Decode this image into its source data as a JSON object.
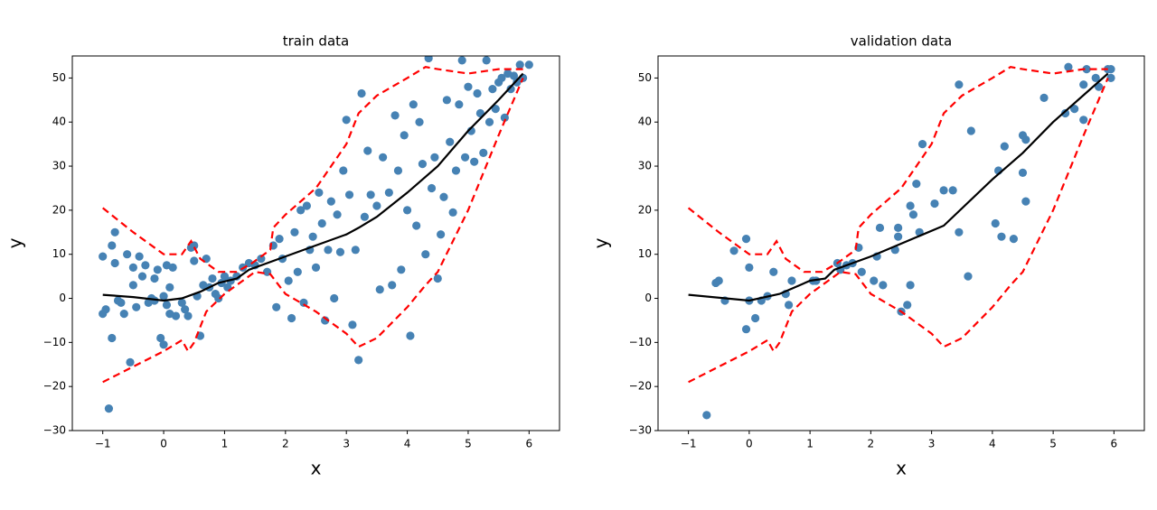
{
  "chart_data": [
    {
      "type": "scatter",
      "title": "train data",
      "xlabel": "x",
      "ylabel": "y",
      "xlim": [
        -1.5,
        6.5
      ],
      "ylim": [
        -30,
        55
      ],
      "xticks": [
        {
          "value": -1,
          "label": "−1"
        },
        0,
        1,
        2,
        3,
        4,
        5,
        6
      ],
      "yticks": [
        {
          "value": -30,
          "label": "−30"
        },
        {
          "value": -20,
          "label": "−20"
        },
        {
          "value": -10,
          "label": "−10"
        },
        0,
        10,
        20,
        30,
        40,
        50
      ],
      "points": {
        "color": "#4682b4",
        "x": [
          -1,
          -1,
          -0.95,
          -0.9,
          -0.85,
          -0.85,
          -0.8,
          -0.8,
          -0.75,
          -0.7,
          -0.65,
          -0.6,
          -0.55,
          -0.5,
          -0.5,
          -0.45,
          -0.4,
          -0.35,
          -0.3,
          -0.25,
          -0.2,
          -0.15,
          -0.15,
          -0.1,
          -0.05,
          0,
          0,
          0.05,
          0.05,
          0.1,
          0.1,
          0.15,
          0.2,
          0.3,
          0.35,
          0.4,
          0.45,
          0.5,
          0.5,
          0.55,
          0.6,
          0.65,
          0.7,
          0.75,
          0.8,
          0.85,
          0.9,
          0.95,
          1,
          1.05,
          1.1,
          1.2,
          1.3,
          1.4,
          1.5,
          1.6,
          1.7,
          1.8,
          1.85,
          1.9,
          1.95,
          2.05,
          2.1,
          2.15,
          2.2,
          2.25,
          2.3,
          2.35,
          2.4,
          2.45,
          2.5,
          2.55,
          2.6,
          2.65,
          2.7,
          2.75,
          2.8,
          2.85,
          2.9,
          2.95,
          3,
          3.05,
          3.1,
          3.15,
          3.2,
          3.25,
          3.3,
          3.35,
          3.4,
          3.5,
          3.55,
          3.6,
          3.7,
          3.75,
          3.8,
          3.85,
          3.9,
          3.95,
          4,
          4.05,
          4.1,
          4.15,
          4.2,
          4.25,
          4.3,
          4.35,
          4.4,
          4.45,
          4.5,
          4.55,
          4.6,
          4.65,
          4.7,
          4.75,
          4.8,
          4.85,
          4.9,
          4.95,
          5,
          5.05,
          5.1,
          5.15,
          5.2,
          5.25,
          5.3,
          5.35,
          5.4,
          5.45,
          5.5,
          5.55,
          5.6,
          5.65,
          5.7,
          5.75,
          5.8,
          5.85,
          5.9,
          6
        ],
        "y": [
          9.5,
          -3.5,
          -2.5,
          -25,
          12,
          -9,
          15,
          8,
          -0.5,
          -1,
          -3.5,
          10,
          -14.5,
          7,
          3,
          -2,
          9.5,
          5,
          7.5,
          -1,
          0,
          -0.5,
          4.5,
          6.5,
          -9,
          -10.5,
          0.5,
          7.5,
          -1.5,
          -3.5,
          2.5,
          7,
          -4,
          -1,
          -2.5,
          -4,
          11.5,
          12,
          8.5,
          0.5,
          -8.5,
          3,
          9,
          2.5,
          4.5,
          1,
          0,
          3.5,
          5,
          2.5,
          4,
          5,
          7,
          8,
          7.5,
          9,
          6,
          12,
          -2,
          13.5,
          9,
          4,
          -4.5,
          15,
          6,
          20,
          -1,
          21,
          11,
          14,
          7,
          24,
          17,
          -5,
          11,
          22,
          0,
          19,
          10.5,
          29,
          40.5,
          23.5,
          -6,
          11,
          -14,
          46.5,
          18.5,
          33.5,
          23.5,
          21,
          2,
          32,
          24,
          3,
          41.5,
          29,
          6.5,
          37,
          20,
          -8.5,
          44,
          16.5,
          40,
          30.5,
          10,
          54.5,
          25,
          32,
          4.5,
          14.5,
          23,
          45,
          35.5,
          19.5,
          29,
          44,
          54,
          32,
          48,
          38,
          31,
          46.5,
          42,
          33,
          54,
          40,
          47.5,
          43,
          49,
          50,
          41,
          51,
          47.5,
          50.5,
          49,
          53,
          50,
          53
        ]
      },
      "line": {
        "color": "#000000",
        "x": [
          -1,
          -0.5,
          0,
          0.3,
          0.6,
          0.9,
          1.2,
          1.4,
          2,
          2.5,
          3,
          3.2,
          3.5,
          4,
          4.5,
          5,
          5.5,
          5.9
        ],
        "y": [
          0.8,
          0.3,
          -0.5,
          0,
          1.5,
          3.5,
          4.5,
          6.5,
          9.5,
          12,
          14.5,
          16,
          18.5,
          24,
          30,
          38,
          45,
          51
        ]
      },
      "upper": {
        "color": "#ff0000",
        "x": [
          -1,
          -0.5,
          0,
          0.3,
          0.45,
          0.6,
          0.9,
          1.2,
          1.45,
          1.75,
          1.8,
          2,
          2.5,
          3,
          3.2,
          3.5,
          4,
          4.3,
          4.5,
          5,
          5.5,
          5.9
        ],
        "y": [
          20.5,
          15,
          10,
          10,
          13,
          9,
          6,
          6,
          8,
          11,
          16,
          19,
          25,
          35,
          42,
          46,
          50,
          52.5,
          52,
          51,
          52,
          52
        ]
      },
      "lower": {
        "color": "#ff0000",
        "x": [
          -1,
          -0.5,
          0,
          0.3,
          0.4,
          0.5,
          0.7,
          1,
          1.3,
          1.5,
          1.75,
          2,
          2.5,
          3,
          3.2,
          3.5,
          4,
          4.3,
          4.5,
          5,
          5.5,
          5.9
        ],
        "y": [
          -19,
          -15.5,
          -12,
          -9.5,
          -12,
          -10,
          -3,
          1,
          4,
          6,
          5.5,
          1,
          -3,
          -8,
          -11,
          -9,
          -2,
          3,
          6,
          20,
          37,
          50
        ]
      }
    },
    {
      "type": "scatter",
      "title": "validation data",
      "xlabel": "x",
      "ylabel": "y",
      "xlim": [
        -1.5,
        6.5
      ],
      "ylim": [
        -30,
        55
      ],
      "xticks": [
        {
          "value": -1,
          "label": "−1"
        },
        0,
        1,
        2,
        3,
        4,
        5,
        6
      ],
      "yticks": [
        {
          "value": -30,
          "label": "−30"
        },
        {
          "value": -20,
          "label": "−20"
        },
        {
          "value": -10,
          "label": "−10"
        },
        0,
        10,
        20,
        30,
        40,
        50
      ],
      "points": {
        "color": "#4682b4",
        "x": [
          -0.55,
          -0.5,
          -0.4,
          -0.25,
          -0.05,
          -0.05,
          0,
          0,
          0.1,
          0.2,
          0.3,
          0.4,
          0.6,
          0.65,
          0.7,
          1.05,
          1.1,
          1.45,
          1.5,
          1.6,
          1.7,
          1.8,
          1.85,
          2.05,
          2.1,
          2.15,
          2.2,
          2.4,
          2.45,
          2.45,
          2.5,
          2.6,
          2.65,
          2.65,
          2.7,
          2.75,
          2.8,
          2.85,
          3.05,
          3.2,
          3.35,
          3.45,
          3.45,
          3.6,
          3.65,
          4.05,
          4.1,
          4.15,
          4.2,
          4.35,
          4.5,
          4.5,
          4.55,
          4.55,
          4.85,
          5.2,
          5.25,
          5.35,
          5.5,
          5.5,
          5.55,
          5.7,
          5.75,
          5.9,
          5.95,
          5.95,
          -0.7
        ],
        "y": [
          3.5,
          4,
          -0.5,
          10.8,
          13.5,
          -7,
          7,
          -0.5,
          -4.5,
          -0.5,
          0.5,
          6,
          1,
          -1.5,
          4,
          4,
          4,
          8,
          6.5,
          7.5,
          8,
          11.5,
          6,
          4,
          9.5,
          16,
          3,
          11,
          14,
          16,
          -3,
          -1.5,
          3,
          21,
          19,
          26,
          15,
          35,
          21.5,
          24.5,
          24.5,
          48.5,
          15,
          5,
          38,
          17,
          29,
          14,
          34.5,
          13.5,
          28.5,
          37,
          36,
          22,
          45.5,
          42,
          52.5,
          43,
          48.5,
          40.5,
          52,
          50,
          48,
          52,
          50,
          52,
          -26.5
        ]
      },
      "line": {
        "color": "#000000",
        "x": [
          -1,
          0,
          0.5,
          1,
          1.25,
          1.4,
          2,
          3.2,
          4,
          4.5,
          5,
          5.9
        ],
        "y": [
          0.8,
          -0.5,
          1,
          4,
          4.5,
          6.5,
          9.5,
          16.5,
          27,
          33,
          40,
          51
        ]
      },
      "upper": {
        "color": "#ff0000",
        "x": [
          -1,
          -0.5,
          0,
          0.3,
          0.45,
          0.6,
          0.9,
          1.2,
          1.45,
          1.75,
          1.8,
          2,
          2.5,
          3,
          3.2,
          3.5,
          4,
          4.3,
          4.5,
          5,
          5.5,
          5.9
        ],
        "y": [
          20.5,
          15,
          10,
          10,
          13,
          9,
          6,
          6,
          8,
          11,
          16,
          19,
          25,
          35,
          42,
          46,
          50,
          52.5,
          52,
          51,
          52,
          52
        ]
      },
      "lower": {
        "color": "#ff0000",
        "x": [
          -1,
          -0.5,
          0,
          0.3,
          0.4,
          0.5,
          0.7,
          1,
          1.3,
          1.5,
          1.75,
          2,
          2.5,
          3,
          3.2,
          3.5,
          4,
          4.3,
          4.5,
          5,
          5.5,
          5.9
        ],
        "y": [
          -19,
          -15.5,
          -12,
          -9.5,
          -12,
          -10,
          -3,
          1,
          4,
          6,
          5.5,
          1,
          -3,
          -8,
          -11,
          -9,
          -2,
          3,
          6,
          20,
          37,
          50
        ]
      }
    }
  ]
}
